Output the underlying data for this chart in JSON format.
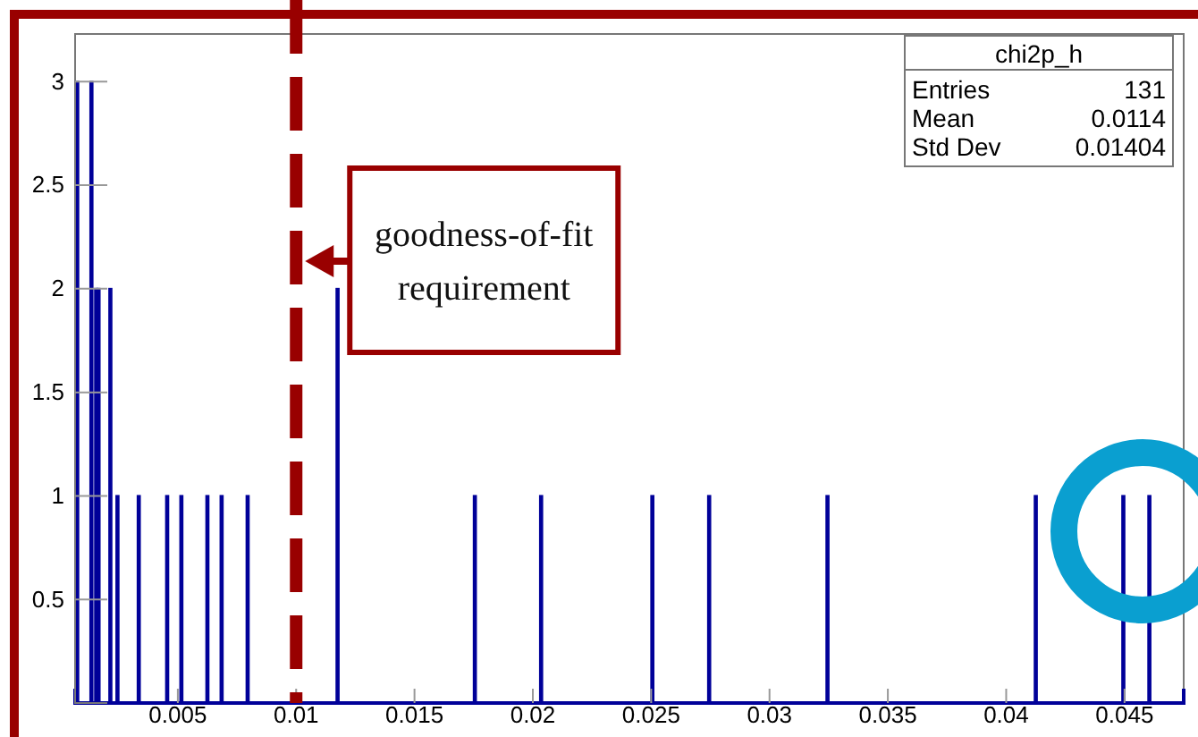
{
  "chart_data": {
    "type": "histogram",
    "bins": [
      0.0007,
      0.0008,
      0.0013,
      0.0014,
      0.0015,
      0.0016,
      0.0017,
      0.0021,
      0.0022,
      0.0024,
      0.0025,
      0.0033,
      0.0034,
      0.0045,
      0.0046,
      0.0051,
      0.0052,
      0.0062,
      0.0063,
      0.0068,
      0.0069,
      0.0079,
      0.008,
      0.0117,
      0.0118,
      0.0175,
      0.0176,
      0.0203,
      0.0204,
      0.025,
      0.0251,
      0.0274,
      0.0275,
      0.0324,
      0.0325,
      0.0412,
      0.0413,
      0.0449,
      0.045,
      0.046,
      0.0461
    ],
    "values": [
      3,
      0,
      3,
      0,
      2,
      2,
      0,
      2,
      0,
      1,
      0,
      1,
      0,
      1,
      0,
      1,
      0,
      1,
      0,
      1,
      0,
      1,
      0,
      2,
      0,
      1,
      0,
      1,
      0,
      1,
      0,
      1,
      0,
      1,
      0,
      1,
      0,
      1,
      0,
      1
    ],
    "color": "#000099",
    "xlim": [
      0.00066,
      0.0475
    ],
    "xticks": [
      0.005,
      0.01,
      0.015,
      0.02,
      0.025,
      0.03,
      0.035,
      0.04,
      0.045
    ],
    "ylim": [
      0,
      3.23
    ],
    "yticks": [
      0.5,
      1,
      1.5,
      2,
      2.5,
      3
    ],
    "ref_lines": [
      {
        "axis": "x",
        "value": 0.01,
        "label": "goodness-of-fit requirement",
        "color": "#990000",
        "line_style": "dashed"
      }
    ],
    "annotations": [
      "chi2p_h",
      "Entries",
      "131",
      "Mean",
      "0.0114",
      "Std Dev",
      "0.01404"
    ]
  }
}
